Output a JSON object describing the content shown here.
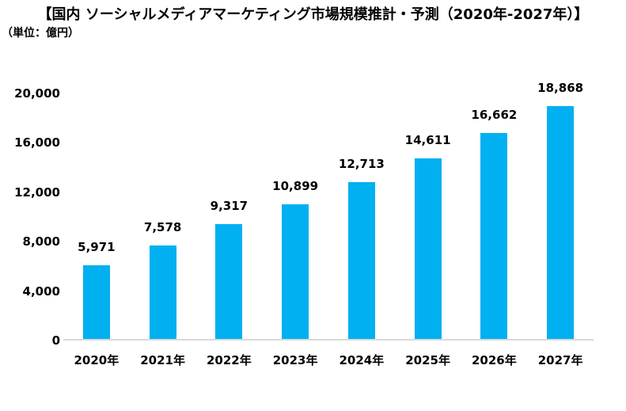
{
  "header": {
    "title": "【国内 ソーシャルメディアマーケティング市場規模推計・予測（2020年-2027年）】",
    "unit_note": "（単位：億円）"
  },
  "chart_data": {
    "type": "bar",
    "title": "国内 ソーシャルメディアマーケティング市場規模推計・予測（2020年-2027年）",
    "unit": "億円",
    "categories": [
      "2020年",
      "2021年",
      "2022年",
      "2023年",
      "2024年",
      "2025年",
      "2026年",
      "2027年"
    ],
    "values": [
      5971,
      7578,
      9317,
      10899,
      12713,
      14611,
      16662,
      18868
    ],
    "value_labels": [
      "5,971",
      "7,578",
      "9,317",
      "10,899",
      "12,713",
      "14,611",
      "16,662",
      "18,868"
    ],
    "ylim": [
      0,
      20000
    ],
    "yticks": [
      0,
      4000,
      8000,
      12000,
      16000,
      20000
    ],
    "ytick_labels": [
      "0",
      "4,000",
      "8,000",
      "12,000",
      "16,000",
      "20,000"
    ],
    "xlabel": "",
    "ylabel": "",
    "grid": false,
    "legend": "none",
    "colors": {
      "bar": "#00b0f0",
      "axis_line": "#d9d9d9",
      "text": "#000000",
      "background": "#ffffff"
    }
  }
}
